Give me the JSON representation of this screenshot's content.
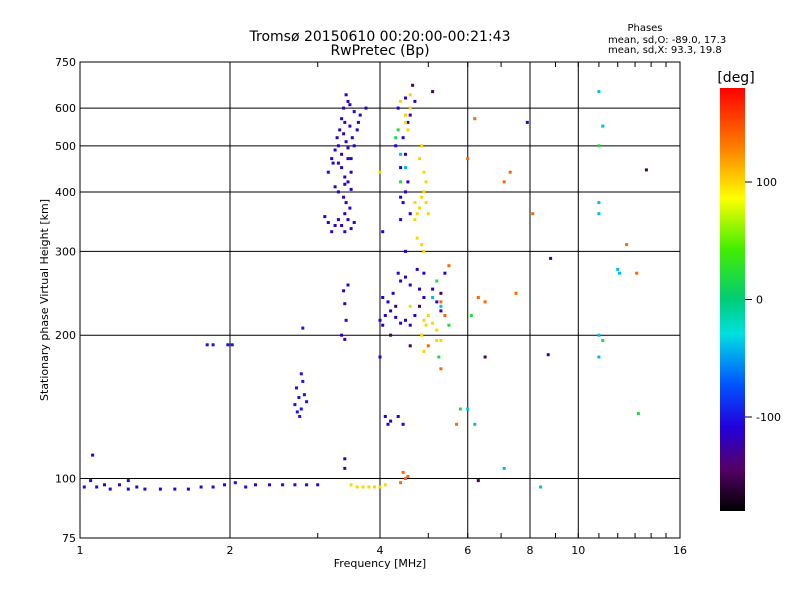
{
  "chart_data": {
    "type": "scatter",
    "title": "Tromsø 20150610 00:20:00-00:21:43",
    "subtitle": "RwPretec (Bp)",
    "xlabel": "Frequency [MHz]",
    "ylabel": "Stationary phase Virtual Height [km]",
    "x_scale": "log",
    "y_scale": "log",
    "xlim": [
      1,
      16
    ],
    "ylim": [
      75,
      750
    ],
    "x_ticks": [
      1,
      2,
      4,
      6,
      8,
      10,
      16
    ],
    "y_ticks": [
      75,
      100,
      200,
      300,
      400,
      500,
      600,
      750
    ],
    "phases_box": {
      "title": "Phases",
      "line1": "mean, sd,O: -89.0, 17.3",
      "line2": "mean, sd,X:  93.3, 19.8"
    },
    "colorbar": {
      "label": "[deg]",
      "range": [
        -180,
        180
      ],
      "ticks": [
        100,
        0,
        -100
      ]
    },
    "series": [
      {
        "phase": -105,
        "points": [
          [
            1.02,
            96
          ],
          [
            1.05,
            99
          ],
          [
            1.08,
            96
          ],
          [
            1.12,
            97
          ],
          [
            1.15,
            95
          ],
          [
            1.2,
            97
          ],
          [
            1.25,
            95
          ],
          [
            1.3,
            96
          ],
          [
            1.35,
            95
          ],
          [
            1.45,
            95
          ],
          [
            1.55,
            95
          ],
          [
            1.65,
            95
          ],
          [
            1.75,
            96
          ],
          [
            1.85,
            96
          ],
          [
            1.95,
            97
          ],
          [
            2.05,
            98
          ],
          [
            2.15,
            96
          ],
          [
            2.25,
            97
          ],
          [
            2.4,
            97
          ],
          [
            2.55,
            97
          ],
          [
            2.7,
            97
          ],
          [
            2.85,
            97
          ],
          [
            3.0,
            97
          ],
          [
            1.06,
            112
          ],
          [
            1.25,
            99
          ]
        ]
      },
      {
        "phase": -100,
        "points": [
          [
            1.8,
            191
          ],
          [
            1.85,
            191
          ],
          [
            1.98,
            191
          ],
          [
            2.02,
            191
          ],
          [
            2.7,
            143
          ],
          [
            2.72,
            155
          ],
          [
            2.75,
            148
          ],
          [
            2.78,
            140
          ],
          [
            2.8,
            160
          ],
          [
            2.82,
            150
          ],
          [
            2.76,
            135
          ],
          [
            2.73,
            138
          ],
          [
            2.85,
            145
          ],
          [
            2.78,
            166
          ],
          [
            2.8,
            207
          ]
        ]
      },
      {
        "phase": -120,
        "points": [
          [
            3.35,
            200
          ],
          [
            3.4,
            196
          ],
          [
            3.42,
            215
          ],
          [
            3.4,
            110
          ],
          [
            3.4,
            105
          ],
          [
            3.38,
            248
          ],
          [
            3.45,
            255
          ],
          [
            3.4,
            233
          ]
        ]
      },
      {
        "phase": -115,
        "points": [
          [
            3.15,
            440
          ],
          [
            3.2,
            470
          ],
          [
            3.22,
            460
          ],
          [
            3.25,
            490
          ],
          [
            3.28,
            520
          ],
          [
            3.3,
            500
          ],
          [
            3.32,
            540
          ],
          [
            3.35,
            480
          ],
          [
            3.38,
            530
          ],
          [
            3.4,
            560
          ],
          [
            3.42,
            510
          ],
          [
            3.45,
            495
          ],
          [
            3.48,
            550
          ],
          [
            3.5,
            470
          ],
          [
            3.52,
            520
          ],
          [
            3.55,
            500
          ],
          [
            3.6,
            540
          ],
          [
            3.62,
            560
          ],
          [
            3.65,
            580
          ],
          [
            3.3,
            460
          ],
          [
            3.35,
            450
          ],
          [
            3.4,
            430
          ],
          [
            3.45,
            420
          ],
          [
            3.5,
            440
          ],
          [
            3.25,
            410
          ],
          [
            3.3,
            400
          ],
          [
            3.38,
            390
          ],
          [
            3.42,
            380
          ],
          [
            3.48,
            370
          ],
          [
            3.4,
            360
          ],
          [
            3.45,
            350
          ],
          [
            3.35,
            340
          ],
          [
            3.4,
            330
          ],
          [
            3.5,
            335
          ],
          [
            3.55,
            345
          ],
          [
            3.2,
            330
          ],
          [
            3.25,
            340
          ],
          [
            3.3,
            350
          ],
          [
            3.1,
            355
          ],
          [
            3.15,
            345
          ],
          [
            3.42,
            640
          ],
          [
            3.45,
            620
          ],
          [
            3.38,
            600
          ],
          [
            3.48,
            610
          ],
          [
            3.55,
            590
          ],
          [
            3.75,
            600
          ],
          [
            3.35,
            570
          ],
          [
            3.45,
            470
          ],
          [
            3.5,
            405
          ],
          [
            3.4,
            415
          ]
        ]
      },
      {
        "phase": -110,
        "points": [
          [
            4.0,
            215
          ],
          [
            4.05,
            210
          ],
          [
            4.1,
            220
          ],
          [
            4.2,
            225
          ],
          [
            4.3,
            218
          ],
          [
            4.4,
            212
          ],
          [
            4.5,
            215
          ],
          [
            4.6,
            210
          ],
          [
            4.7,
            220
          ],
          [
            4.05,
            240
          ],
          [
            4.15,
            235
          ],
          [
            4.25,
            245
          ],
          [
            4.4,
            260
          ],
          [
            4.5,
            265
          ],
          [
            4.35,
            270
          ],
          [
            4.6,
            255
          ],
          [
            4.8,
            250
          ],
          [
            4.9,
            240
          ],
          [
            4.0,
            180
          ],
          [
            4.1,
            135
          ],
          [
            4.2,
            132
          ],
          [
            4.35,
            135
          ],
          [
            4.45,
            130
          ],
          [
            4.15,
            130
          ],
          [
            4.4,
            350
          ],
          [
            4.45,
            380
          ],
          [
            4.5,
            400
          ],
          [
            4.55,
            420
          ],
          [
            4.4,
            450
          ],
          [
            4.5,
            480
          ],
          [
            4.45,
            520
          ],
          [
            4.55,
            560
          ],
          [
            4.35,
            600
          ],
          [
            4.5,
            630
          ],
          [
            4.6,
            580
          ],
          [
            4.3,
            500
          ],
          [
            4.4,
            390
          ],
          [
            4.6,
            360
          ],
          [
            4.5,
            300
          ],
          [
            4.05,
            330
          ],
          [
            4.7,
            620
          ],
          [
            5.1,
            250
          ],
          [
            5.2,
            235
          ],
          [
            5.4,
            270
          ],
          [
            5.3,
            225
          ],
          [
            4.9,
            270
          ],
          [
            4.75,
            275
          ],
          [
            8.8,
            290
          ],
          [
            8.7,
            182
          ],
          [
            7.9,
            560
          ]
        ]
      },
      {
        "phase": 100,
        "points": [
          [
            3.5,
            97
          ],
          [
            3.6,
            96
          ],
          [
            3.7,
            96
          ],
          [
            3.8,
            96
          ],
          [
            3.9,
            96
          ],
          [
            4.0,
            96
          ],
          [
            4.1,
            97
          ],
          [
            4.7,
            380
          ],
          [
            4.75,
            360
          ],
          [
            4.8,
            370
          ],
          [
            4.85,
            390
          ],
          [
            4.9,
            400
          ],
          [
            4.95,
            380
          ],
          [
            5.0,
            360
          ],
          [
            4.75,
            320
          ],
          [
            4.85,
            310
          ],
          [
            4.9,
            300
          ],
          [
            4.7,
            350
          ],
          [
            4.55,
            540
          ],
          [
            4.6,
            600
          ],
          [
            4.8,
            470
          ],
          [
            4.85,
            500
          ],
          [
            4.9,
            440
          ],
          [
            4.95,
            420
          ],
          [
            4.9,
            215
          ],
          [
            4.95,
            210
          ],
          [
            5.0,
            220
          ],
          [
            5.1,
            212
          ],
          [
            5.2,
            205
          ],
          [
            4.85,
            200
          ],
          [
            4.6,
            230
          ],
          [
            4.5,
            580
          ],
          [
            4.6,
            640
          ],
          [
            4.4,
            620
          ],
          [
            4.5,
            560
          ],
          [
            4.9,
            185
          ],
          [
            5.3,
            195
          ],
          [
            5.2,
            195
          ],
          [
            4.0,
            440
          ]
        ]
      },
      {
        "phase": 140,
        "points": [
          [
            4.45,
            103
          ],
          [
            4.5,
            100
          ],
          [
            4.4,
            98
          ],
          [
            4.55,
            101
          ],
          [
            5.3,
            235
          ],
          [
            5.4,
            220
          ],
          [
            5.5,
            280
          ],
          [
            6.3,
            240
          ],
          [
            6.5,
            235
          ],
          [
            7.5,
            245
          ],
          [
            7.3,
            440
          ],
          [
            6.0,
            470
          ],
          [
            6.2,
            570
          ],
          [
            8.1,
            360
          ],
          [
            7.1,
            420
          ],
          [
            13.1,
            270
          ],
          [
            12.5,
            310
          ],
          [
            5.0,
            190
          ],
          [
            5.3,
            170
          ],
          [
            5.7,
            130
          ]
        ]
      },
      {
        "phase": 20,
        "points": [
          [
            4.3,
            520
          ],
          [
            4.35,
            540
          ],
          [
            4.4,
            420
          ],
          [
            5.2,
            260
          ],
          [
            6.1,
            220
          ],
          [
            5.5,
            210
          ],
          [
            5.25,
            180
          ],
          [
            5.8,
            140
          ],
          [
            13.2,
            137
          ],
          [
            11.2,
            195
          ],
          [
            11.0,
            500
          ]
        ]
      },
      {
        "phase": -40,
        "points": [
          [
            4.4,
            480
          ],
          [
            4.5,
            450
          ],
          [
            5.1,
            240
          ],
          [
            5.3,
            230
          ],
          [
            6.0,
            140
          ],
          [
            11.0,
            180
          ],
          [
            11.0,
            200
          ],
          [
            11.0,
            380
          ],
          [
            11.0,
            360
          ],
          [
            11.2,
            550
          ],
          [
            11.0,
            650
          ],
          [
            12.1,
            270
          ],
          [
            12.0,
            275
          ],
          [
            8.4,
            96
          ],
          [
            7.1,
            105
          ],
          [
            6.2,
            130
          ]
        ]
      },
      {
        "phase": -150,
        "points": [
          [
            4.2,
            200
          ],
          [
            4.3,
            230
          ],
          [
            4.6,
            190
          ],
          [
            4.8,
            230
          ],
          [
            5.3,
            245
          ],
          [
            6.3,
            99
          ],
          [
            6.5,
            180
          ],
          [
            13.7,
            445
          ],
          [
            5.1,
            650
          ],
          [
            4.65,
            670
          ]
        ]
      }
    ]
  }
}
